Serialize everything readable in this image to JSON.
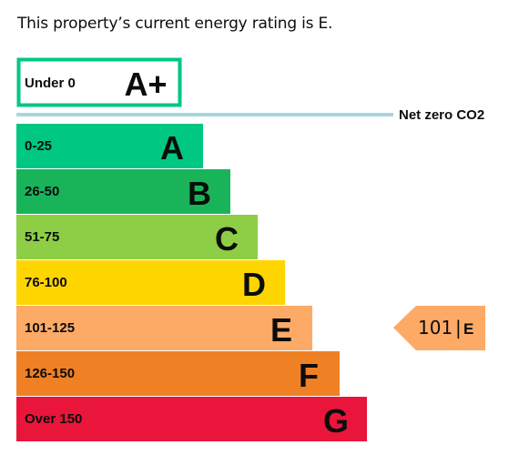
{
  "intro_text": "This property’s current energy rating is E.",
  "chart_data": {
    "type": "bar",
    "title": "",
    "categories": [
      "Under 0",
      "0-25",
      "26-50",
      "51-75",
      "76-100",
      "101-125",
      "126-150",
      "Over 150"
    ],
    "bands": [
      {
        "range": "Under 0",
        "letter": "A+",
        "color": "#ffffff",
        "outline": "#00c781"
      },
      {
        "range": "0-25",
        "letter": "A",
        "color": "#00c781"
      },
      {
        "range": "26-50",
        "letter": "B",
        "color": "#19b459"
      },
      {
        "range": "51-75",
        "letter": "C",
        "color": "#8dce46"
      },
      {
        "range": "76-100",
        "letter": "D",
        "color": "#ffd500"
      },
      {
        "range": "101-125",
        "letter": "E",
        "color": "#fcaa65"
      },
      {
        "range": "126-150",
        "letter": "F",
        "color": "#ef8023"
      },
      {
        "range": "Over 150",
        "letter": "G",
        "color": "#e9153b"
      }
    ],
    "net_zero": {
      "label": "Net zero CO2",
      "color": "#a6d7e0"
    },
    "current": {
      "value": 101,
      "letter": "E",
      "band": "101-125",
      "color": "#fcaa65"
    }
  }
}
